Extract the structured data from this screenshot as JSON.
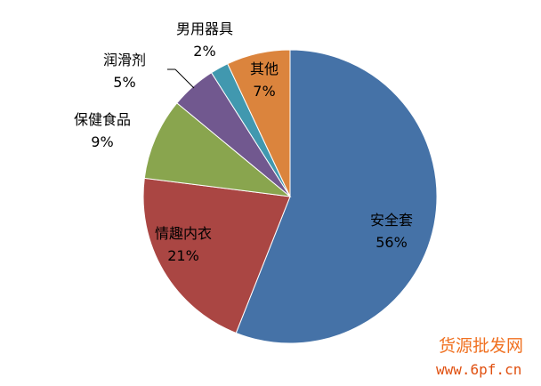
{
  "chart_data": {
    "type": "pie",
    "title": "",
    "start_angle": "top, clockwise",
    "slices": [
      {
        "label": "安全套",
        "value": 56,
        "value_label": "56%",
        "color": "#4572A7"
      },
      {
        "label": "情趣内衣",
        "value": 21,
        "value_label": "21%",
        "color": "#AA4643"
      },
      {
        "label": "保健食品",
        "value": 9,
        "value_label": "9%",
        "color": "#89A54E"
      },
      {
        "label": "润滑剂",
        "value": 5,
        "value_label": "5%",
        "color": "#71588F"
      },
      {
        "label": "男用器具",
        "value": 2,
        "value_label": "2%",
        "color": "#4198AF"
      },
      {
        "label": "其他",
        "value": 7,
        "value_label": "7%",
        "color": "#DB843D"
      }
    ]
  },
  "watermark": {
    "name": "货源批发网",
    "url": "www.6pf.cn"
  }
}
